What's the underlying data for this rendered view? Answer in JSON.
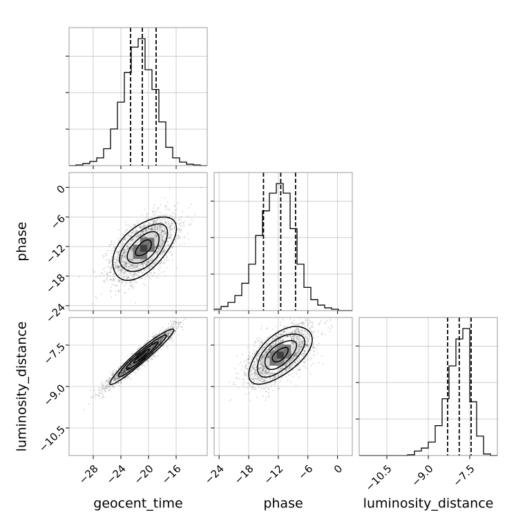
{
  "chart_data": {
    "type": "corner",
    "parameters": [
      {
        "name": "geocent_time",
        "xlabel": "geocent_time",
        "ylabel": "",
        "range": [
          -31.5,
          -11.5
        ],
        "ticks": [
          -28,
          -24,
          -20,
          -16
        ],
        "tick_labels": [
          "−28",
          "−24",
          "−20",
          "−16"
        ],
        "quantiles": [
          -22.6,
          -20.9,
          -18.9
        ],
        "hist_bin_edges": [
          -31.5,
          -30.5,
          -29.5,
          -28.5,
          -27.5,
          -26.5,
          -25.5,
          -24.5,
          -23.5,
          -22.5,
          -21.5,
          -20.5,
          -19.5,
          -18.5,
          -17.5,
          -16.5,
          -15.5,
          -14.5,
          -13.5,
          -12.5,
          -11.5
        ],
        "hist_counts": [
          0.0,
          0.005,
          0.015,
          0.03,
          0.055,
          0.12,
          0.26,
          0.45,
          0.66,
          0.84,
          0.9,
          0.68,
          0.54,
          0.31,
          0.13,
          0.055,
          0.025,
          0.01,
          0.005,
          0.0
        ]
      },
      {
        "name": "phase",
        "xlabel": "phase",
        "ylabel": "phase",
        "range": [
          -25,
          3
        ],
        "ticks": [
          -24,
          -18,
          -12,
          -6,
          0
        ],
        "tick_labels": [
          "−24",
          "−18",
          "−12",
          "−6",
          "0"
        ],
        "quantiles": [
          -15.0,
          -11.5,
          -8.5
        ],
        "hist_bin_edges": [
          -25,
          -23.6,
          -22.2,
          -20.8,
          -19.4,
          -18,
          -16.6,
          -15.2,
          -13.8,
          -12.4,
          -11,
          -9.6,
          -8.2,
          -6.8,
          -5.4,
          -4,
          -2.6,
          -1.2,
          0.2,
          1.6,
          3
        ],
        "hist_counts": [
          0.01,
          0.03,
          0.06,
          0.11,
          0.2,
          0.34,
          0.55,
          0.73,
          0.86,
          0.93,
          0.86,
          0.6,
          0.34,
          0.17,
          0.08,
          0.04,
          0.02,
          0.01,
          0.0,
          0.0
        ]
      },
      {
        "name": "luminosity_distance",
        "xlabel": "luminosity_distance",
        "ylabel": "luminosity_distance",
        "range": [
          -11.5,
          -6.5
        ],
        "ticks": [
          -10.5,
          -9.0,
          -7.5
        ],
        "tick_labels": [
          "−10.5",
          "−9.0",
          "−7.5"
        ],
        "quantiles": [
          -8.3,
          -7.88,
          -7.45
        ],
        "hist_bin_edges": [
          -11.5,
          -11.25,
          -11.0,
          -10.75,
          -10.5,
          -10.25,
          -10.0,
          -9.75,
          -9.5,
          -9.25,
          -9.0,
          -8.75,
          -8.5,
          -8.25,
          -8.0,
          -7.75,
          -7.5,
          -7.25,
          -7.0,
          -6.75,
          -6.5
        ],
        "hist_counts": [
          0,
          0,
          0,
          0,
          0,
          0,
          0,
          0.005,
          0.03,
          0.05,
          0.09,
          0.2,
          0.38,
          0.6,
          0.78,
          0.85,
          0.36,
          0.13,
          0.01,
          0
        ]
      }
    ],
    "pairs": [
      {
        "x": "geocent_time",
        "y": "phase",
        "center": [
          -20.7,
          -12.3
        ],
        "sd": [
          2.3,
          3.2
        ],
        "corr": 0.55
      },
      {
        "x": "geocent_time",
        "y": "luminosity_distance",
        "center": [
          -21.0,
          -7.9
        ],
        "sd": [
          2.3,
          0.5
        ],
        "corr": 0.96
      },
      {
        "x": "phase",
        "y": "luminosity_distance",
        "center": [
          -11.6,
          -7.85
        ],
        "sd": [
          3.2,
          0.52
        ],
        "corr": 0.6
      }
    ],
    "contour_levels_sigma": [
      0.5,
      1.0,
      1.5,
      2.0
    ],
    "grid": true,
    "colors": {
      "scatter": "#000000",
      "line": "#000000",
      "grid": "#b0b0b0",
      "frame": "#808080"
    }
  }
}
